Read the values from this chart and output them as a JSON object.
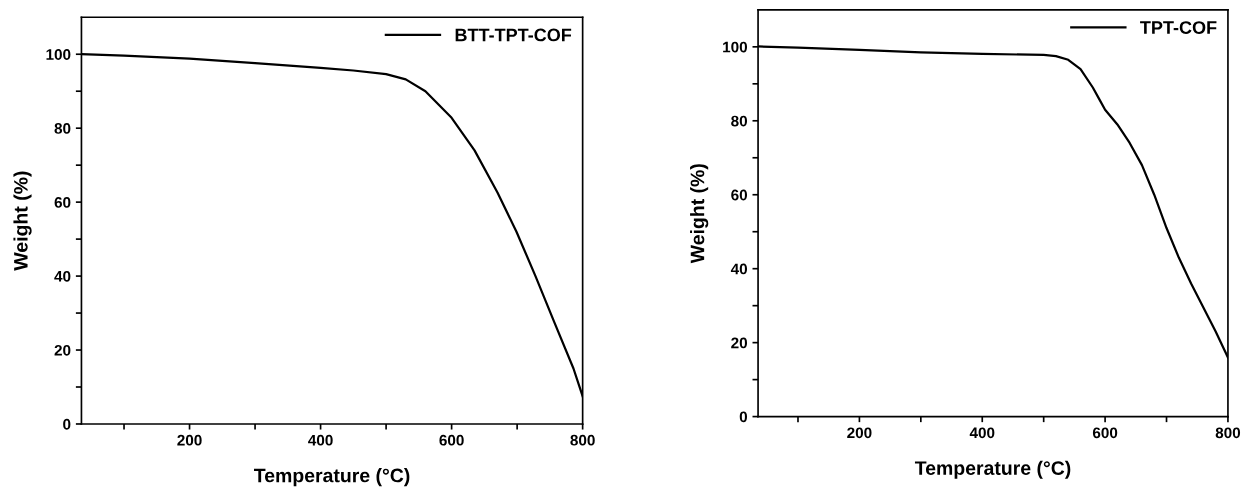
{
  "chart_data": [
    {
      "type": "line",
      "xlabel": "Temperature (°C)",
      "ylabel": "Weight (%)",
      "xlim": [
        35,
        800
      ],
      "ylim": [
        0,
        110
      ],
      "xticks": [
        {
          "value": 100,
          "label": null
        },
        200,
        {
          "value": 300,
          "label": null
        },
        400,
        {
          "value": 500,
          "label": null
        },
        600,
        {
          "value": 700,
          "label": null
        },
        800
      ],
      "yticks": [
        0,
        {
          "value": 10,
          "label": null
        },
        20,
        {
          "value": 30,
          "label": null
        },
        40,
        {
          "value": 50,
          "label": null
        },
        60,
        {
          "value": 70,
          "label": null
        },
        80,
        {
          "value": 90,
          "label": null
        },
        100
      ],
      "legend": "top right",
      "grid": false,
      "series": [
        {
          "name": "BTT-TPT-COF",
          "color": "#000000",
          "x": [
            35,
            100,
            200,
            300,
            400,
            450,
            500,
            530,
            560,
            600,
            635,
            670,
            699,
            728,
            757,
            786,
            800
          ],
          "values": [
            100,
            99.6,
            98.8,
            97.6,
            96.3,
            95.6,
            94.6,
            93.2,
            90.0,
            82.8,
            74,
            62.6,
            52,
            40,
            27.4,
            15,
            7.5
          ]
        }
      ]
    },
    {
      "type": "line",
      "xlabel": "Temperature (°C)",
      "ylabel": "Weight (%)",
      "xlim": [
        35,
        800
      ],
      "ylim": [
        0,
        110
      ],
      "xticks": [
        {
          "value": 100,
          "label": null
        },
        200,
        {
          "value": 300,
          "label": null
        },
        400,
        {
          "value": 500,
          "label": null
        },
        600,
        {
          "value": 700,
          "label": null
        },
        800
      ],
      "yticks": [
        0,
        {
          "value": 10,
          "label": null
        },
        20,
        {
          "value": 30,
          "label": null
        },
        40,
        {
          "value": 50,
          "label": null
        },
        60,
        {
          "value": 70,
          "label": null
        },
        80,
        {
          "value": 90,
          "label": null
        },
        100
      ],
      "legend": "top right",
      "grid": false,
      "series": [
        {
          "name": "TPT-COF",
          "color": "#000000",
          "x": [
            35,
            100,
            200,
            300,
            400,
            500,
            520,
            540,
            560,
            580,
            590,
            600,
            620,
            640,
            660,
            680,
            700,
            720,
            740,
            760,
            780,
            800
          ],
          "values": [
            100.1,
            99.8,
            99.2,
            98.5,
            98.1,
            97.8,
            97.5,
            96.5,
            94,
            89,
            86,
            83,
            79,
            74,
            68,
            60,
            51,
            43,
            36,
            29.5,
            23,
            16
          ]
        }
      ]
    }
  ]
}
